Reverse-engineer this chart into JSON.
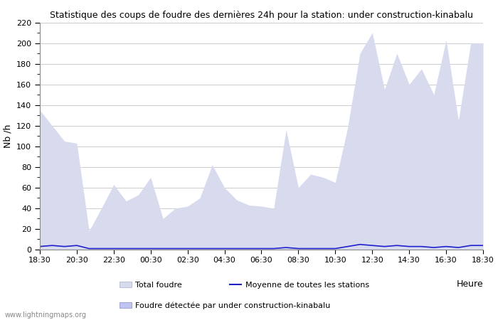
{
  "title": "Statistique des coups de foudre des dernières 24h pour la station: under construction-kinabalu",
  "xlabel": "Heure",
  "ylabel": "Nb /h",
  "ylim": [
    0,
    220
  ],
  "yticks_major": [
    0,
    20,
    40,
    60,
    80,
    100,
    120,
    140,
    160,
    180,
    200,
    220
  ],
  "time_labels": [
    "18:30",
    "20:30",
    "22:30",
    "00:30",
    "02:30",
    "04:30",
    "06:30",
    "08:30",
    "10:30",
    "12:30",
    "14:30",
    "16:30",
    "18:30"
  ],
  "background_color": "#ffffff",
  "grid_color": "#cccccc",
  "fill_total_color": "#d8daee",
  "fill_station_color": "#c0c4f0",
  "mean_line_color": "#2020cc",
  "watermark": "www.lightningmaps.org",
  "legend": {
    "total_foudre": "Total foudre",
    "moyenne": "Moyenne de toutes les stations",
    "station": "Foudre détectée par under construction-kinabalu"
  },
  "total_values": [
    135,
    120,
    105,
    103,
    18,
    40,
    63,
    47,
    53,
    70,
    30,
    40,
    42,
    50,
    82,
    60,
    48,
    43,
    42,
    40,
    116,
    60,
    73,
    70,
    65,
    118,
    190,
    210,
    155,
    190,
    160,
    175,
    150,
    203,
    125,
    200,
    200
  ],
  "station_values": [
    0,
    0,
    0,
    0,
    0,
    0,
    0,
    0,
    0,
    0,
    0,
    0,
    0,
    0,
    0,
    0,
    0,
    0,
    0,
    0,
    0,
    0,
    0,
    0,
    0,
    0,
    0,
    0,
    0,
    0,
    0,
    0,
    0,
    0,
    0,
    0,
    0
  ],
  "mean_values": [
    3,
    4,
    3,
    4,
    1,
    1,
    1,
    1,
    1,
    1,
    1,
    1,
    1,
    1,
    1,
    1,
    1,
    1,
    1,
    1,
    2,
    1,
    1,
    1,
    1,
    3,
    5,
    4,
    3,
    4,
    3,
    3,
    2,
    3,
    2,
    4,
    4
  ]
}
